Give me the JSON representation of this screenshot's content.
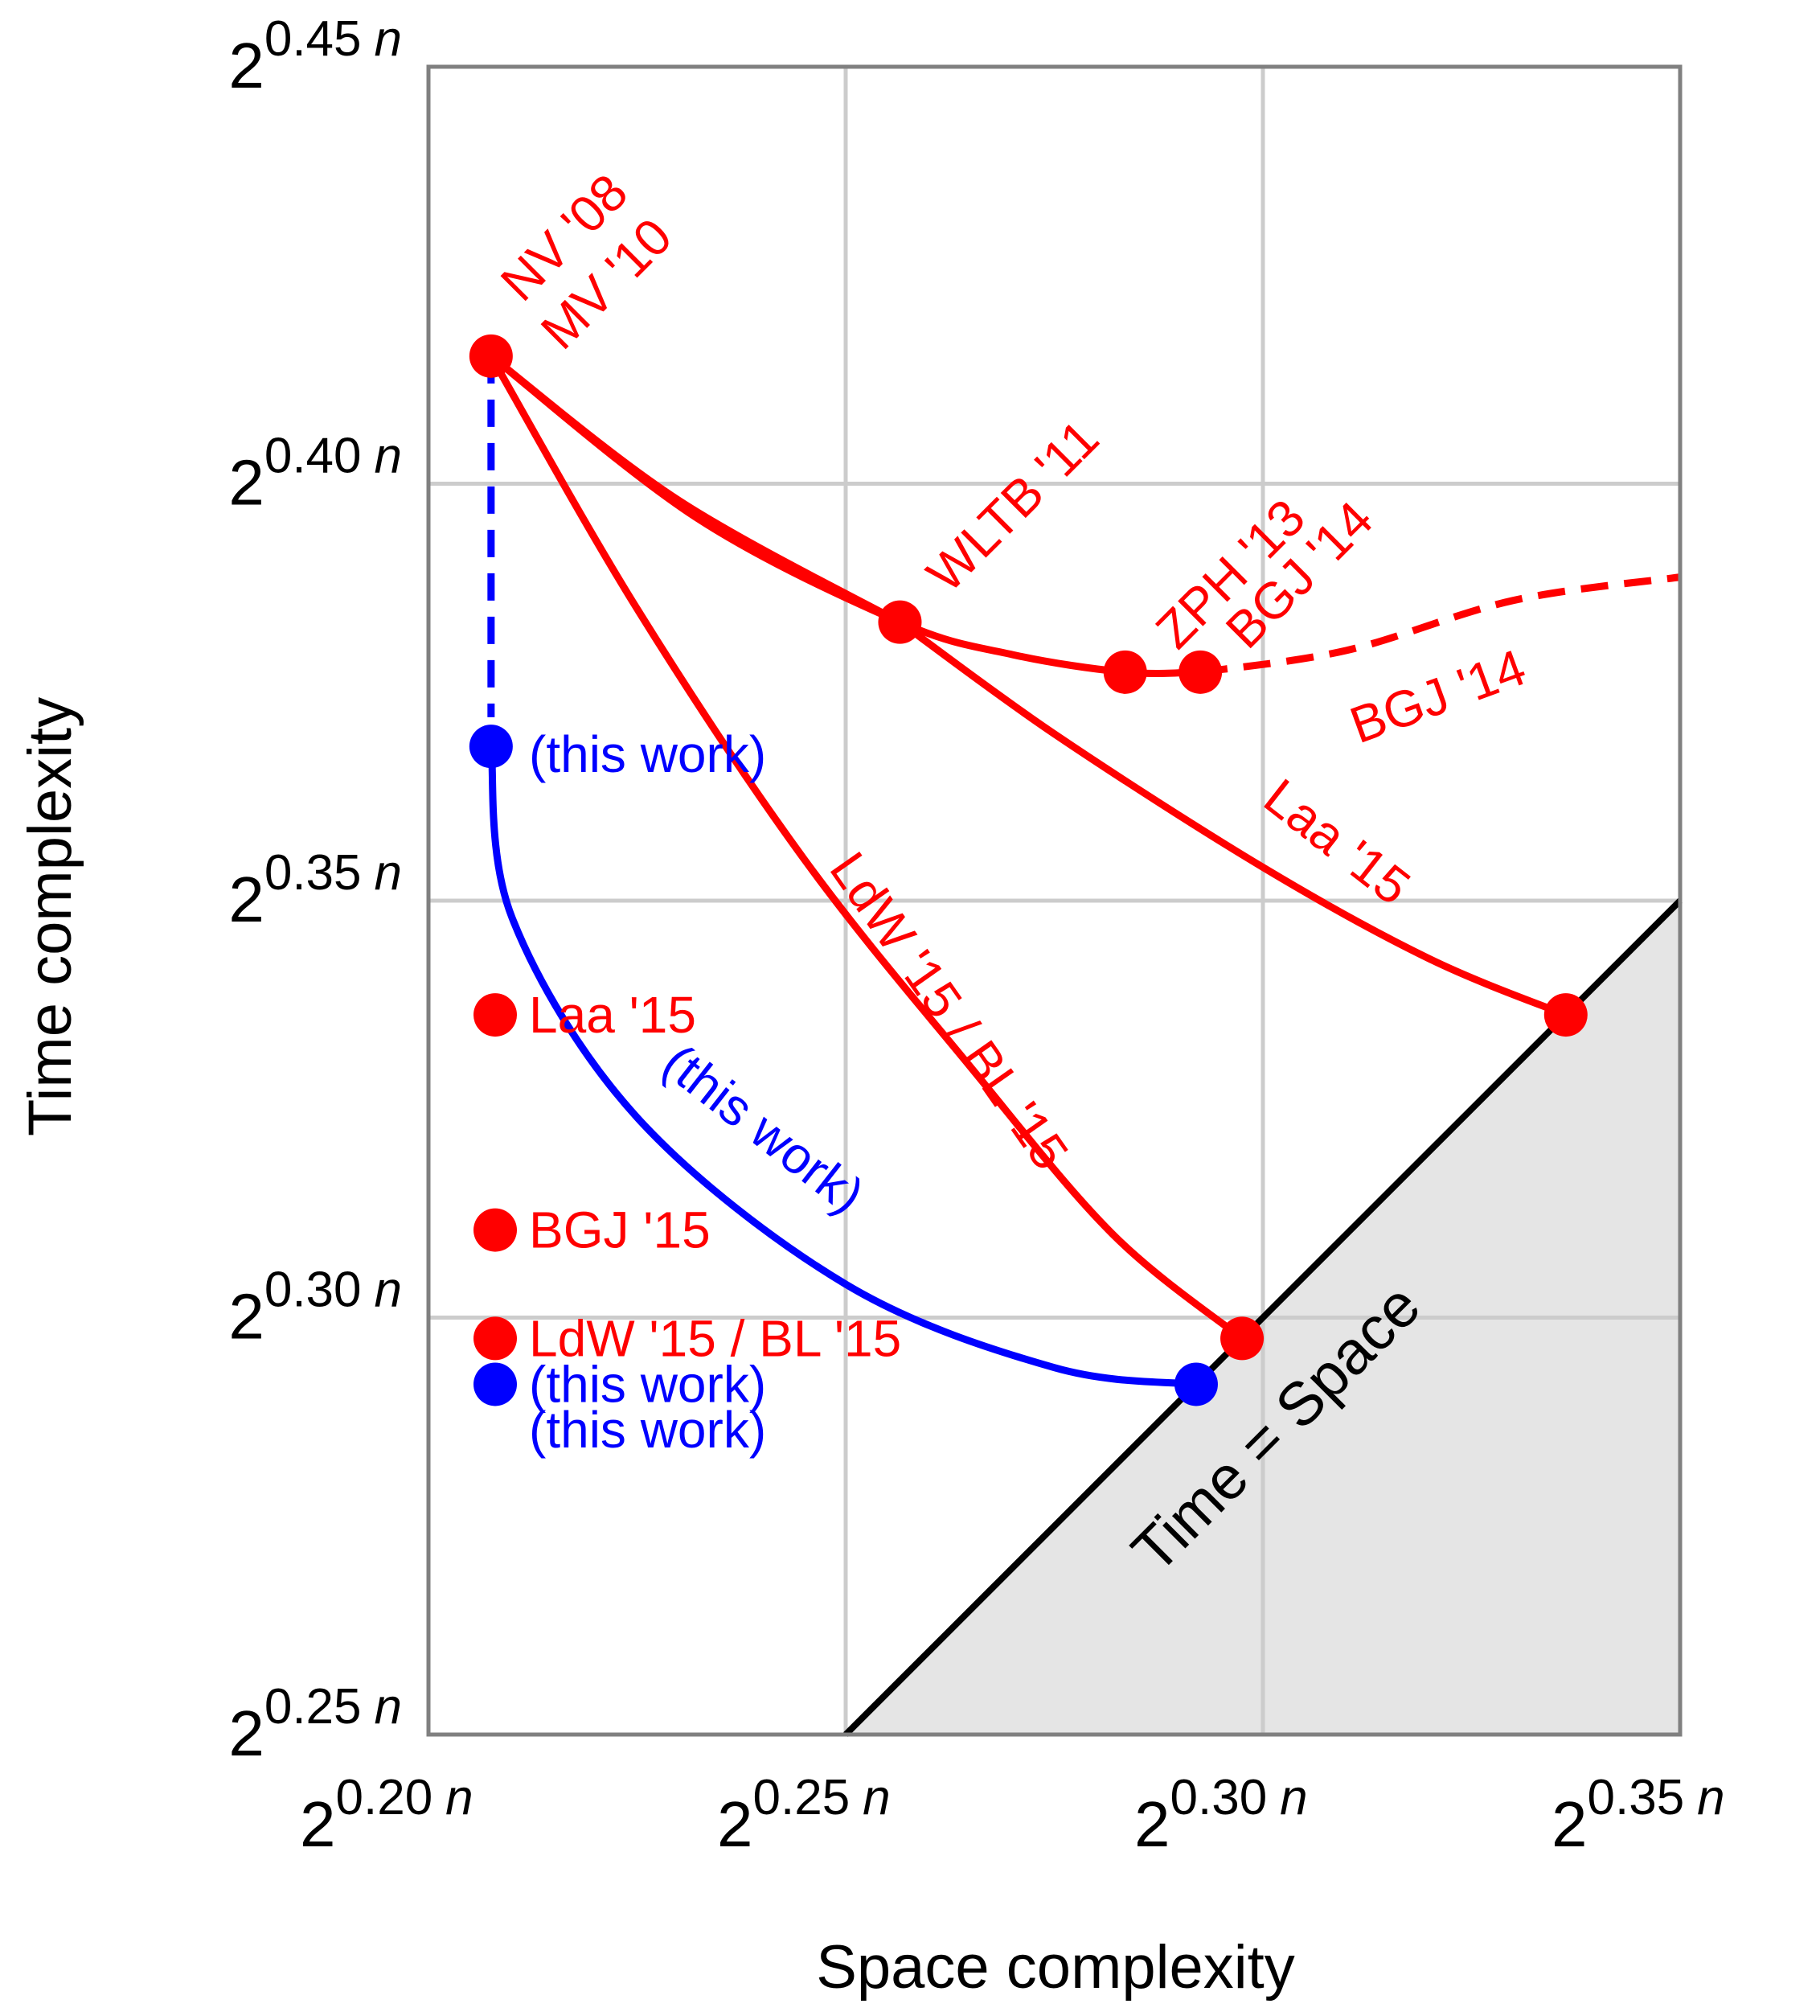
{
  "chart_data": {
    "type": "line",
    "title": "",
    "xlabel": "Space complexity",
    "ylabel": "Time complexity",
    "xlim": [
      0.2,
      0.35
    ],
    "ylim": [
      0.25,
      0.45
    ],
    "log_scale_base": 2,
    "grid": true,
    "x_ticks": [
      {
        "value": 0.2,
        "base": "2",
        "exp": "0.20",
        "var": "n"
      },
      {
        "value": 0.25,
        "base": "2",
        "exp": "0.25",
        "var": "n"
      },
      {
        "value": 0.3,
        "base": "2",
        "exp": "0.30",
        "var": "n"
      },
      {
        "value": 0.35,
        "base": "2",
        "exp": "0.35",
        "var": "n"
      }
    ],
    "y_ticks": [
      {
        "value": 0.25,
        "base": "2",
        "exp": "0.25",
        "var": "n"
      },
      {
        "value": 0.3,
        "base": "2",
        "exp": "0.30",
        "var": "n"
      },
      {
        "value": 0.35,
        "base": "2",
        "exp": "0.35",
        "var": "n"
      },
      {
        "value": 0.4,
        "base": "2",
        "exp": "0.40",
        "var": "n"
      },
      {
        "value": 0.45,
        "base": "2",
        "exp": "0.45",
        "var": "n"
      }
    ],
    "colors": {
      "prior": "#ff0000",
      "this_work": "#0000ff",
      "bound": "#000000",
      "shade": "#e5e5e5",
      "grid": "#cccccc",
      "frame": "#808080"
    },
    "region": {
      "label": "Time = Space",
      "bound": [
        [
          0.25,
          0.25
        ],
        [
          0.35,
          0.35
        ]
      ]
    },
    "curves": [
      {
        "color": "prior",
        "style": "solid",
        "points": [
          [
            0.2075,
            0.4153
          ],
          [
            0.23,
            0.398
          ],
          [
            0.2565,
            0.3834
          ]
        ]
      },
      {
        "color": "prior",
        "style": "solid",
        "points": [
          [
            0.2075,
            0.4153
          ],
          [
            0.232,
            0.396
          ],
          [
            0.2565,
            0.3834
          ],
          [
            0.27,
            0.3795
          ],
          [
            0.2835,
            0.3774
          ],
          [
            0.2925,
            0.3774
          ]
        ]
      },
      {
        "color": "prior",
        "style": "dashed",
        "points": [
          [
            0.2925,
            0.3774
          ],
          [
            0.31,
            0.38
          ],
          [
            0.33,
            0.386
          ],
          [
            0.35,
            0.3888
          ]
        ]
      },
      {
        "color": "prior",
        "style": "solid",
        "points": [
          [
            0.2565,
            0.3834
          ],
          [
            0.275,
            0.37
          ],
          [
            0.3,
            0.354
          ],
          [
            0.32,
            0.343
          ],
          [
            0.3363,
            0.3363
          ]
        ]
      },
      {
        "color": "prior",
        "style": "solid",
        "points": [
          [
            0.2075,
            0.4153
          ],
          [
            0.225,
            0.385
          ],
          [
            0.245,
            0.355
          ],
          [
            0.265,
            0.33
          ],
          [
            0.282,
            0.31
          ],
          [
            0.2975,
            0.2975
          ]
        ]
      },
      {
        "color": "this_work",
        "style": "dashed",
        "points": [
          [
            0.2075,
            0.4153
          ],
          [
            0.2075,
            0.372
          ]
        ]
      },
      {
        "color": "this_work",
        "style": "solid",
        "points": [
          [
            0.2075,
            0.3685
          ],
          [
            0.21,
            0.348
          ],
          [
            0.225,
            0.324
          ],
          [
            0.25,
            0.304
          ],
          [
            0.275,
            0.294
          ],
          [
            0.292,
            0.292
          ]
        ]
      }
    ],
    "points": [
      {
        "x": 0.2075,
        "y": 0.4153,
        "color": "prior"
      },
      {
        "x": 0.2565,
        "y": 0.3834,
        "color": "prior"
      },
      {
        "x": 0.2835,
        "y": 0.3774,
        "color": "prior"
      },
      {
        "x": 0.2925,
        "y": 0.3774,
        "color": "prior"
      },
      {
        "x": 0.3363,
        "y": 0.3363,
        "color": "prior"
      },
      {
        "x": 0.2975,
        "y": 0.2975,
        "color": "prior"
      },
      {
        "x": 0.292,
        "y": 0.292,
        "color": "this_work"
      },
      {
        "x": 0.2075,
        "y": 0.3685,
        "color": "this_work"
      }
    ],
    "axis_markers": [
      {
        "y": 0.3363,
        "color": "prior",
        "label": "Laa '15"
      },
      {
        "y": 0.3105,
        "color": "prior",
        "label": "BGJ '15"
      },
      {
        "y": 0.2975,
        "color": "prior",
        "label": "LdW '15 / BL '15"
      },
      {
        "y": 0.292,
        "color": "this_work",
        "label": "(this work)"
      }
    ],
    "annotations": [
      {
        "text": "NV '08",
        "color": "prior"
      },
      {
        "text": "MV '10",
        "color": "prior"
      },
      {
        "text": "WLTB '11",
        "color": "prior"
      },
      {
        "text": "ZPH '13",
        "color": "prior"
      },
      {
        "text": "BGJ '14",
        "color": "prior"
      },
      {
        "text": "BGJ '14",
        "color": "prior"
      },
      {
        "text": "Laa '15",
        "color": "prior"
      },
      {
        "text": "LdW '15 / BL '15",
        "color": "prior"
      },
      {
        "text": "(this work)",
        "color": "this_work"
      },
      {
        "text": "(this work)",
        "color": "this_work"
      }
    ]
  }
}
